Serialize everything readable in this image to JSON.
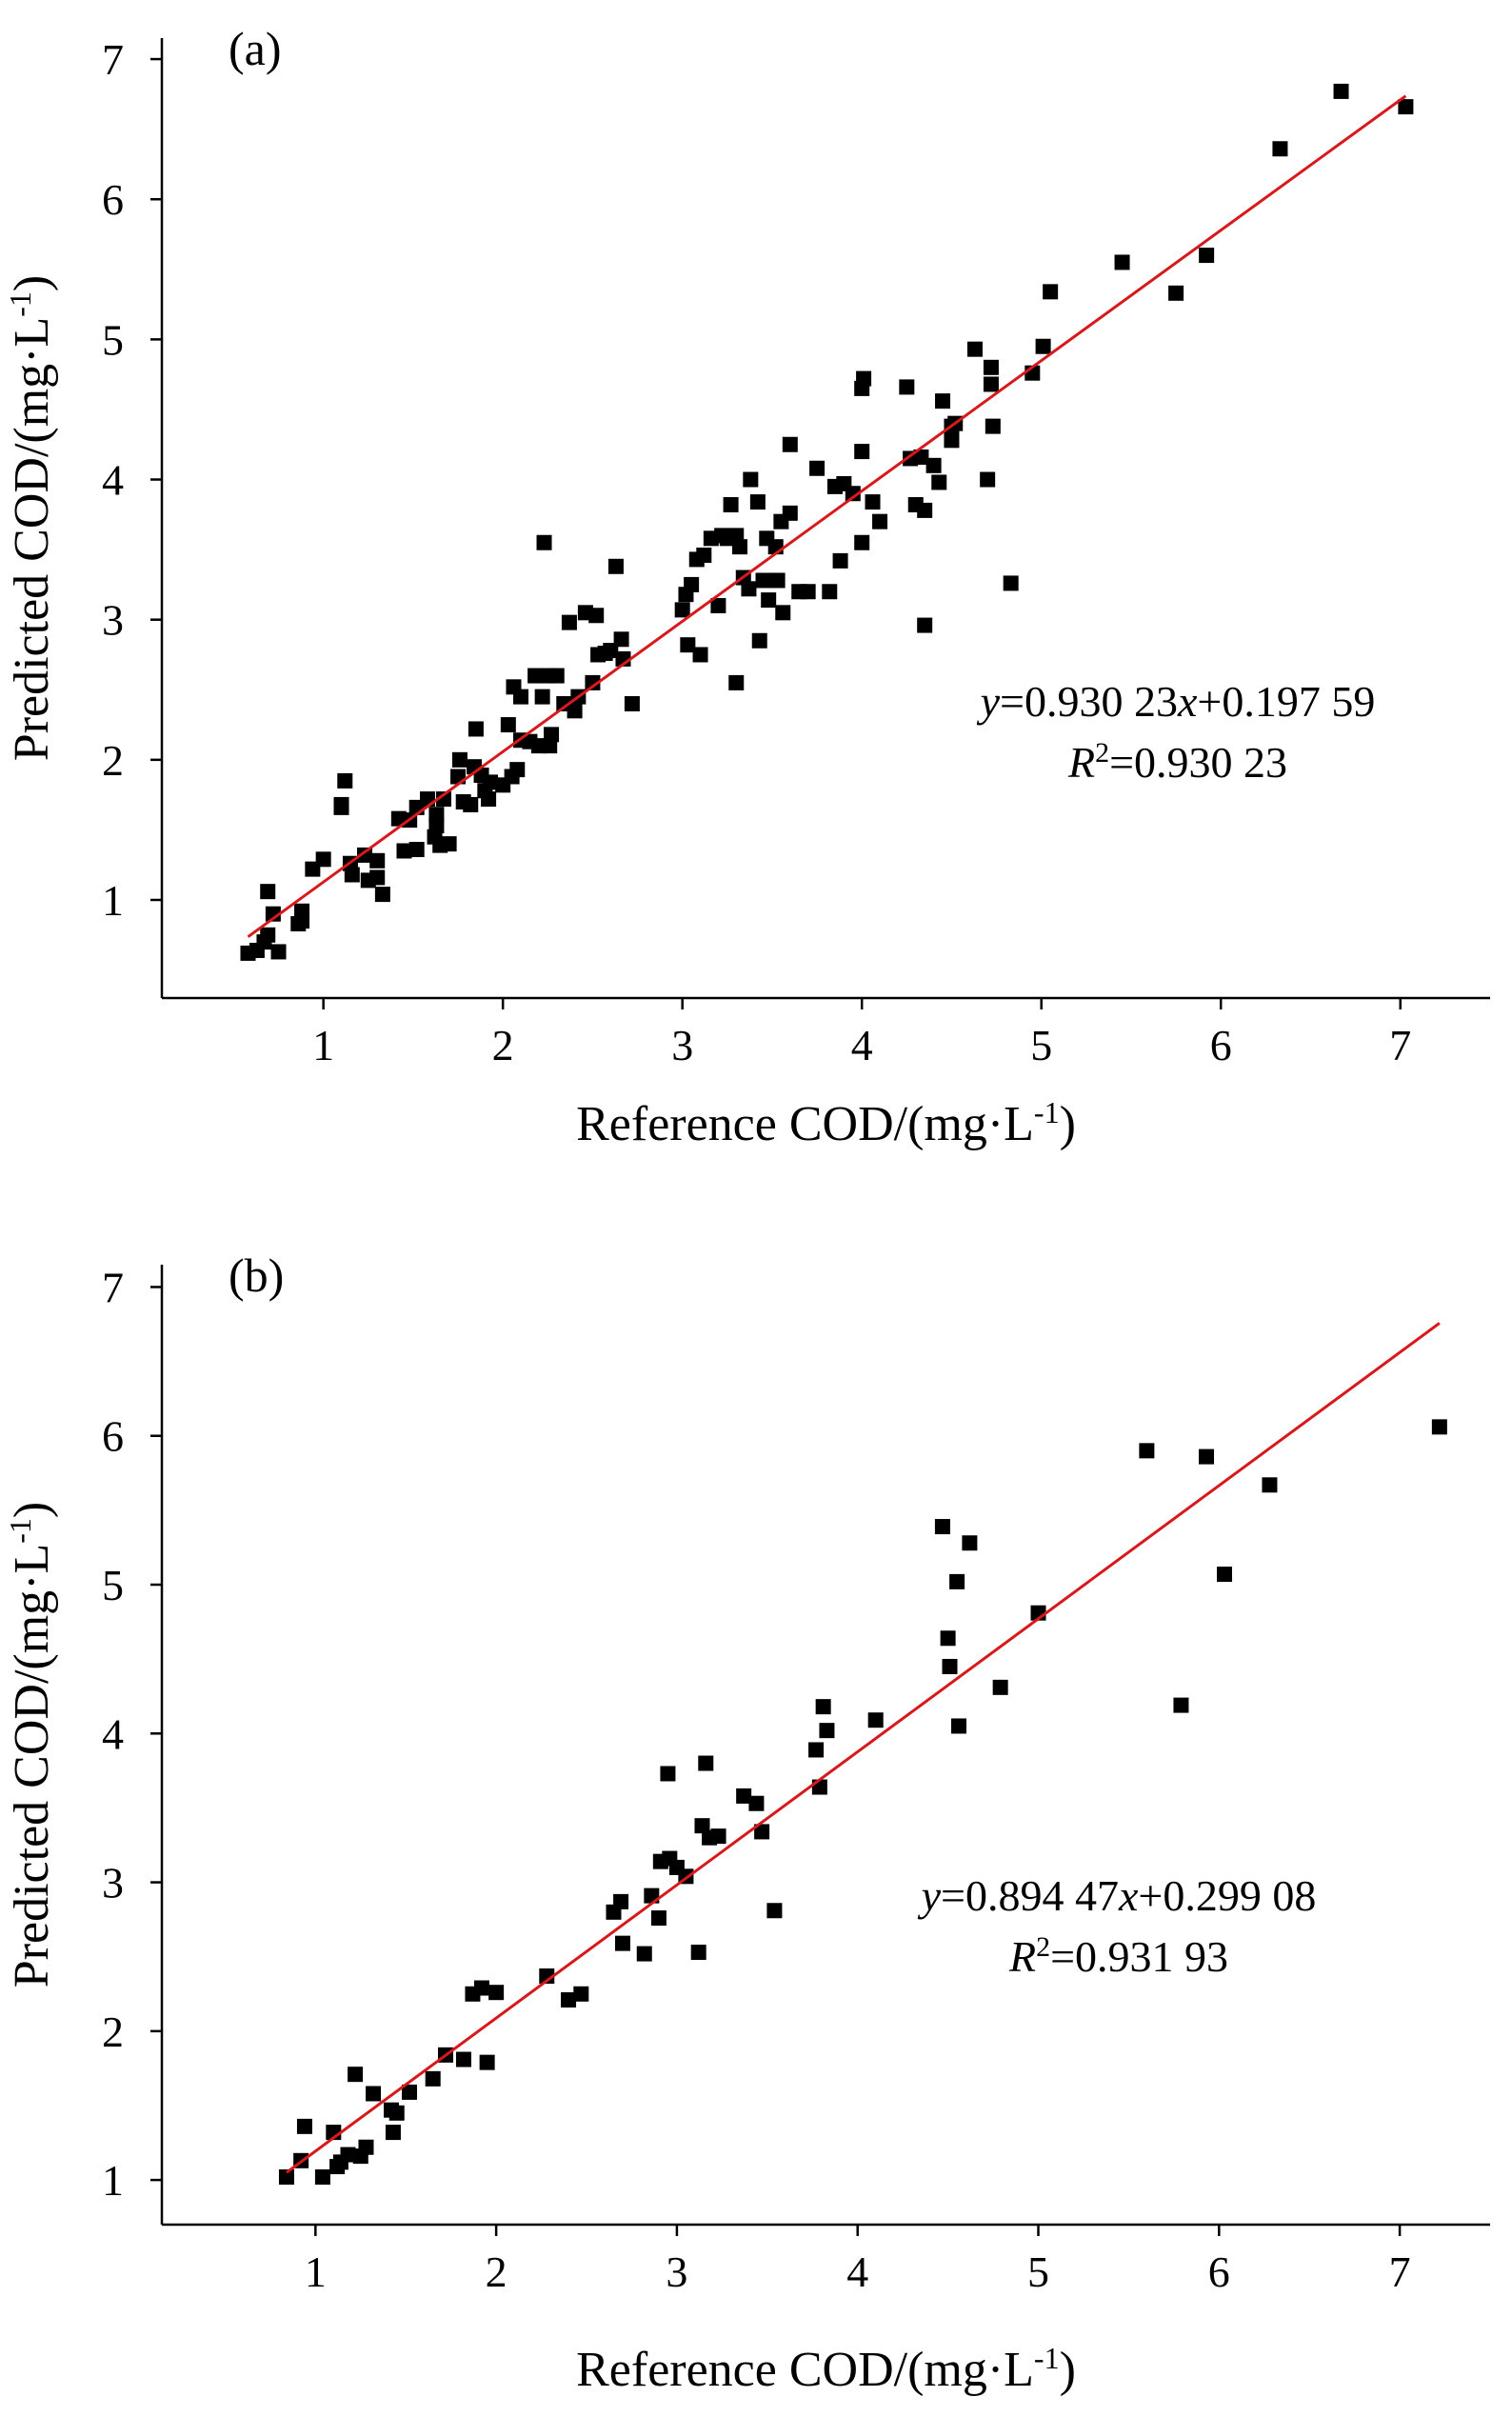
{
  "chart_data": [
    {
      "type": "scatter",
      "panel_label": "(a)",
      "xlabel": {
        "main": "Reference COD/(mg·L",
        "sup": "-1",
        "close": ")"
      },
      "ylabel": {
        "main": "Predicted COD/(mg·L",
        "sup": "-1",
        "close": ")"
      },
      "xlim": [
        0.1,
        7.5
      ],
      "ylim": [
        0.3,
        7.15
      ],
      "xticks": [
        "1",
        "2",
        "3",
        "4",
        "5",
        "6",
        "7"
      ],
      "yticks": [
        "1",
        "2",
        "3",
        "4",
        "5",
        "6",
        "7"
      ],
      "fit": {
        "slope": 0.93023,
        "intercept": 0.19759,
        "x_range": [
          0.58,
          7.03
        ],
        "color": "#d7191c"
      },
      "equation": {
        "y": "y",
        "mid": "=0.930 23",
        "x": "x",
        "rest": "+0.197 59"
      },
      "r2": {
        "r": "R",
        "sup": "2",
        "rest": "=0.930 23"
      },
      "marker_color": "#000000",
      "points": [
        [
          0.58,
          0.62
        ],
        [
          0.63,
          0.64
        ],
        [
          0.67,
          0.7
        ],
        [
          0.69,
          0.75
        ],
        [
          0.75,
          0.63
        ],
        [
          0.69,
          1.06
        ],
        [
          0.72,
          0.9
        ],
        [
          0.86,
          0.83
        ],
        [
          0.88,
          0.92
        ],
        [
          0.88,
          0.85
        ],
        [
          0.94,
          1.22
        ],
        [
          1.0,
          1.29
        ],
        [
          1.1,
          1.66
        ],
        [
          1.12,
          1.85
        ],
        [
          1.1,
          1.68
        ],
        [
          1.15,
          1.26
        ],
        [
          1.16,
          1.18
        ],
        [
          1.23,
          1.32
        ],
        [
          1.25,
          1.14
        ],
        [
          1.3,
          1.16
        ],
        [
          1.3,
          1.28
        ],
        [
          1.33,
          1.04
        ],
        [
          1.42,
          1.58
        ],
        [
          1.45,
          1.35
        ],
        [
          1.48,
          1.57
        ],
        [
          1.52,
          1.36
        ],
        [
          1.52,
          1.66
        ],
        [
          1.58,
          1.72
        ],
        [
          1.62,
          1.45
        ],
        [
          1.63,
          1.53
        ],
        [
          1.63,
          1.61
        ],
        [
          1.65,
          1.39
        ],
        [
          1.67,
          1.72
        ],
        [
          1.7,
          1.4
        ],
        [
          1.75,
          1.88
        ],
        [
          1.76,
          2.0
        ],
        [
          1.78,
          1.7
        ],
        [
          1.82,
          1.68
        ],
        [
          1.84,
          1.95
        ],
        [
          1.85,
          2.22
        ],
        [
          1.88,
          1.89
        ],
        [
          1.9,
          1.78
        ],
        [
          1.92,
          1.72
        ],
        [
          1.93,
          1.84
        ],
        [
          2.0,
          1.82
        ],
        [
          2.03,
          2.25
        ],
        [
          2.05,
          1.88
        ],
        [
          2.06,
          2.52
        ],
        [
          2.08,
          1.93
        ],
        [
          2.1,
          2.14
        ],
        [
          2.1,
          2.45
        ],
        [
          2.15,
          2.13
        ],
        [
          2.18,
          2.6
        ],
        [
          2.2,
          2.1
        ],
        [
          2.22,
          2.45
        ],
        [
          2.23,
          3.55
        ],
        [
          2.25,
          2.6
        ],
        [
          2.26,
          2.1
        ],
        [
          2.27,
          2.18
        ],
        [
          2.3,
          2.6
        ],
        [
          2.34,
          2.4
        ],
        [
          2.37,
          2.98
        ],
        [
          2.4,
          2.35
        ],
        [
          2.42,
          2.45
        ],
        [
          2.46,
          3.05
        ],
        [
          2.5,
          2.55
        ],
        [
          2.52,
          3.03
        ],
        [
          2.53,
          2.75
        ],
        [
          2.57,
          2.76
        ],
        [
          2.6,
          2.78
        ],
        [
          2.63,
          3.38
        ],
        [
          2.67,
          2.72
        ],
        [
          2.66,
          2.86
        ],
        [
          2.72,
          2.4
        ],
        [
          3.0,
          3.07
        ],
        [
          3.02,
          3.18
        ],
        [
          3.03,
          2.82
        ],
        [
          3.05,
          3.25
        ],
        [
          3.08,
          3.43
        ],
        [
          3.1,
          2.75
        ],
        [
          3.12,
          3.46
        ],
        [
          3.16,
          3.58
        ],
        [
          3.2,
          3.1
        ],
        [
          3.22,
          3.6
        ],
        [
          3.25,
          3.58
        ],
        [
          3.27,
          3.82
        ],
        [
          3.3,
          2.55
        ],
        [
          3.3,
          3.6
        ],
        [
          3.32,
          3.52
        ],
        [
          3.34,
          3.3
        ],
        [
          3.37,
          3.22
        ],
        [
          3.38,
          4.0
        ],
        [
          3.42,
          3.84
        ],
        [
          3.43,
          2.85
        ],
        [
          3.45,
          3.28
        ],
        [
          3.47,
          3.58
        ],
        [
          3.48,
          3.14
        ],
        [
          3.52,
          3.52
        ],
        [
          3.53,
          3.28
        ],
        [
          3.55,
          3.7
        ],
        [
          3.56,
          3.05
        ],
        [
          3.6,
          3.76
        ],
        [
          3.6,
          4.25
        ],
        [
          3.65,
          3.2
        ],
        [
          3.7,
          3.2
        ],
        [
          3.75,
          4.08
        ],
        [
          3.82,
          3.2
        ],
        [
          3.85,
          3.95
        ],
        [
          3.88,
          3.42
        ],
        [
          3.9,
          3.97
        ],
        [
          3.95,
          3.9
        ],
        [
          4.0,
          4.2
        ],
        [
          4.0,
          3.55
        ],
        [
          4.0,
          4.65
        ],
        [
          4.01,
          4.72
        ],
        [
          4.06,
          3.84
        ],
        [
          4.1,
          3.7
        ],
        [
          4.25,
          4.66
        ],
        [
          4.27,
          4.15
        ],
        [
          4.3,
          3.82
        ],
        [
          4.33,
          4.16
        ],
        [
          4.35,
          3.78
        ],
        [
          4.35,
          2.96
        ],
        [
          4.4,
          4.1
        ],
        [
          4.43,
          3.98
        ],
        [
          4.45,
          4.56
        ],
        [
          4.5,
          4.38
        ],
        [
          4.5,
          4.28
        ],
        [
          4.52,
          4.4
        ],
        [
          4.63,
          4.93
        ],
        [
          4.7,
          4.0
        ],
        [
          4.72,
          4.8
        ],
        [
          4.72,
          4.68
        ],
        [
          4.73,
          4.38
        ],
        [
          4.83,
          3.26
        ],
        [
          4.95,
          4.76
        ],
        [
          5.01,
          4.95
        ],
        [
          5.05,
          5.34
        ],
        [
          5.45,
          5.55
        ],
        [
          5.75,
          5.33
        ],
        [
          5.92,
          5.6
        ],
        [
          6.33,
          6.36
        ],
        [
          6.67,
          6.77
        ],
        [
          7.03,
          6.66
        ]
      ]
    },
    {
      "type": "scatter",
      "panel_label": "(b)",
      "xlabel": {
        "main": "Reference COD/(mg·L",
        "sup": "-1",
        "close": ")"
      },
      "ylabel": {
        "main": "Predicted COD/(mg·L",
        "sup": "-1",
        "close": ")"
      },
      "xlim": [
        0.15,
        7.5
      ],
      "ylim": [
        0.7,
        7.15
      ],
      "xticks": [
        "1",
        "2",
        "3",
        "4",
        "5",
        "6",
        "7"
      ],
      "yticks": [
        "1",
        "2",
        "3",
        "4",
        "5",
        "6",
        "7"
      ],
      "fit": {
        "slope": 0.89447,
        "intercept": 0.29908,
        "x_range": [
          0.84,
          7.22
        ],
        "color": "#d7191c"
      },
      "equation": {
        "y": "y",
        "mid": "=0.894 47",
        "x": "x",
        "rest": "+0.299 08"
      },
      "r2": {
        "r": "R",
        "sup": "2",
        "rest": "=0.931 93"
      },
      "marker_color": "#000000",
      "points": [
        [
          0.84,
          1.02
        ],
        [
          0.92,
          1.13
        ],
        [
          0.94,
          1.36
        ],
        [
          1.04,
          1.02
        ],
        [
          1.1,
          1.32
        ],
        [
          1.12,
          1.09
        ],
        [
          1.14,
          1.12
        ],
        [
          1.18,
          1.17
        ],
        [
          1.22,
          1.71
        ],
        [
          1.25,
          1.16
        ],
        [
          1.28,
          1.22
        ],
        [
          1.32,
          1.58
        ],
        [
          1.42,
          1.47
        ],
        [
          1.43,
          1.32
        ],
        [
          1.45,
          1.45
        ],
        [
          1.52,
          1.59
        ],
        [
          1.65,
          1.68
        ],
        [
          1.72,
          1.84
        ],
        [
          1.82,
          1.81
        ],
        [
          1.87,
          2.25
        ],
        [
          1.92,
          2.29
        ],
        [
          1.95,
          1.79
        ],
        [
          2.0,
          2.26
        ],
        [
          2.28,
          2.37
        ],
        [
          2.4,
          2.21
        ],
        [
          2.47,
          2.25
        ],
        [
          2.65,
          2.8
        ],
        [
          2.69,
          2.87
        ],
        [
          2.7,
          2.59
        ],
        [
          2.82,
          2.52
        ],
        [
          2.86,
          2.91
        ],
        [
          2.9,
          2.76
        ],
        [
          2.91,
          3.14
        ],
        [
          2.95,
          3.73
        ],
        [
          2.96,
          3.16
        ],
        [
          3.0,
          3.1
        ],
        [
          3.05,
          3.04
        ],
        [
          3.12,
          2.53
        ],
        [
          3.14,
          3.38
        ],
        [
          3.16,
          3.8
        ],
        [
          3.18,
          3.3
        ],
        [
          3.23,
          3.31
        ],
        [
          3.37,
          3.58
        ],
        [
          3.44,
          3.53
        ],
        [
          3.47,
          3.34
        ],
        [
          3.54,
          2.81
        ],
        [
          3.77,
          3.89
        ],
        [
          3.79,
          3.64
        ],
        [
          3.81,
          4.18
        ],
        [
          3.83,
          4.02
        ],
        [
          4.1,
          4.09
        ],
        [
          4.47,
          5.39
        ],
        [
          4.5,
          4.64
        ],
        [
          4.51,
          4.45
        ],
        [
          4.55,
          5.02
        ],
        [
          4.56,
          4.05
        ],
        [
          4.62,
          5.28
        ],
        [
          4.79,
          4.31
        ],
        [
          5.0,
          4.81
        ],
        [
          5.6,
          5.9
        ],
        [
          5.79,
          4.19
        ],
        [
          5.93,
          5.86
        ],
        [
          6.03,
          5.07
        ],
        [
          6.28,
          5.67
        ],
        [
          7.22,
          6.06
        ]
      ]
    }
  ]
}
